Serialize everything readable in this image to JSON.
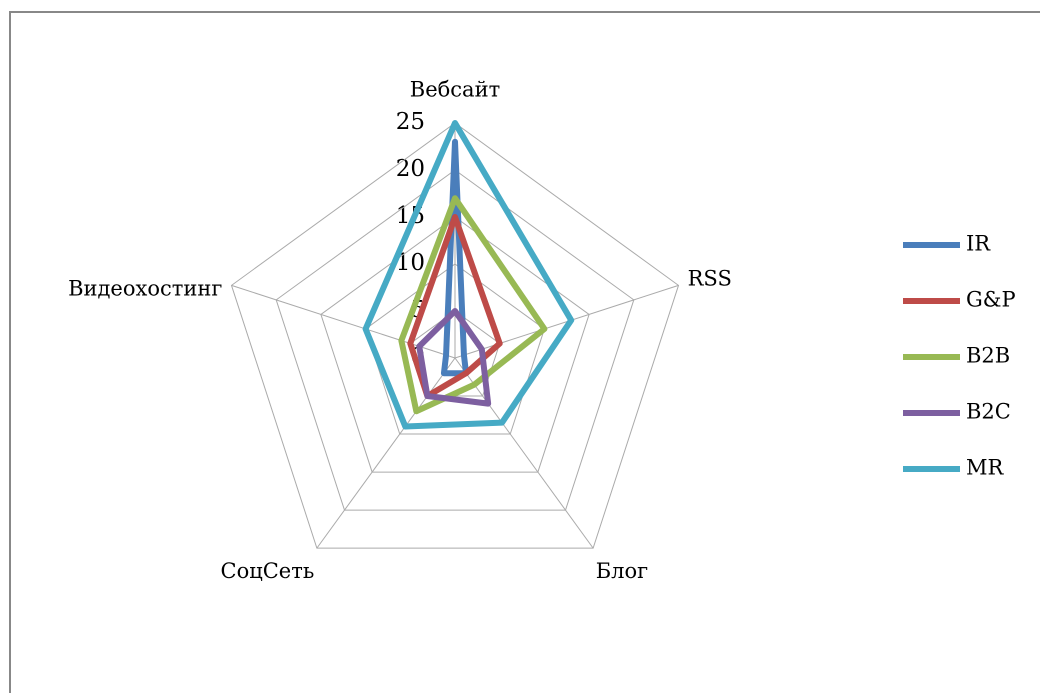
{
  "chart_data": {
    "type": "radar",
    "categories": [
      "Вебсайт",
      "RSS",
      "Блог",
      "СоцСеть",
      "Видеохостинг"
    ],
    "series": [
      {
        "name": "IR",
        "color": "#4a7ebb",
        "values": [
          23,
          1,
          2,
          2,
          1
        ]
      },
      {
        "name": "G&P",
        "color": "#be4b48",
        "values": [
          15,
          5,
          2,
          5,
          5
        ]
      },
      {
        "name": "B2B",
        "color": "#98b954",
        "values": [
          17,
          10,
          3.5,
          7,
          6
        ]
      },
      {
        "name": "B2C",
        "color": "#7d5fa0",
        "values": [
          5,
          3,
          6,
          5,
          4
        ]
      },
      {
        "name": "MR",
        "color": "#46aac5",
        "values": [
          25,
          13,
          8.5,
          9,
          10
        ]
      }
    ],
    "ylim": [
      0,
      25
    ],
    "yticks": [
      0,
      5,
      10,
      15,
      20,
      25
    ],
    "grid": true,
    "legend": "right"
  }
}
